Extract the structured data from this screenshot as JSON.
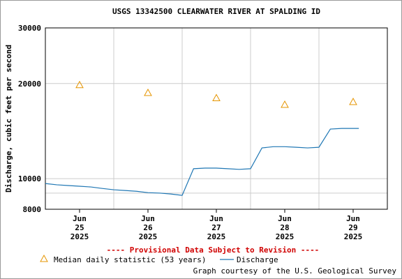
{
  "chart_data": {
    "type": "line",
    "title": "USGS 13342500 CLEARWATER RIVER AT SPALDING ID",
    "ylabel": "Discharge, cubic feet per second",
    "log_y": true,
    "ylim": [
      8000,
      30000
    ],
    "yticks": [
      8000,
      10000,
      20000,
      30000
    ],
    "ygrid_minor": [
      9000
    ],
    "xlim": [
      "2025-06-25T00:00",
      "2025-06-30T00:00"
    ],
    "xgrid": [
      "2025-06-26T00:00",
      "2025-06-27T00:00",
      "2025-06-28T00:00",
      "2025-06-29T00:00"
    ],
    "xticks": [
      {
        "value": "2025-06-25T12:00",
        "label": [
          "Jun",
          "25",
          "2025"
        ]
      },
      {
        "value": "2025-06-26T12:00",
        "label": [
          "Jun",
          "26",
          "2025"
        ]
      },
      {
        "value": "2025-06-27T12:00",
        "label": [
          "Jun",
          "27",
          "2025"
        ]
      },
      {
        "value": "2025-06-28T12:00",
        "label": [
          "Jun",
          "28",
          "2025"
        ]
      },
      {
        "value": "2025-06-29T12:00",
        "label": [
          "Jun",
          "29",
          "2025"
        ]
      }
    ],
    "series": [
      {
        "name": "Median daily statistic (53 years)",
        "color": "#e69500",
        "marker": "triangle",
        "x": [
          "2025-06-25T12:00",
          "2025-06-26T12:00",
          "2025-06-27T12:00",
          "2025-06-28T12:00",
          "2025-06-29T12:00"
        ],
        "values": [
          19800,
          18700,
          18000,
          17150,
          17500
        ]
      },
      {
        "name": "Discharge",
        "color": "#1f77b4",
        "marker": "line",
        "x": [
          "2025-06-25T00:00",
          "2025-06-25T04:00",
          "2025-06-25T08:00",
          "2025-06-25T12:00",
          "2025-06-25T16:00",
          "2025-06-25T20:00",
          "2025-06-26T00:00",
          "2025-06-26T04:00",
          "2025-06-26T08:00",
          "2025-06-26T12:00",
          "2025-06-26T16:00",
          "2025-06-26T20:00",
          "2025-06-27T00:00",
          "2025-06-27T04:00",
          "2025-06-27T08:00",
          "2025-06-27T12:00",
          "2025-06-27T16:00",
          "2025-06-27T20:00",
          "2025-06-28T00:00",
          "2025-06-28T04:00",
          "2025-06-28T08:00",
          "2025-06-28T12:00",
          "2025-06-28T16:00",
          "2025-06-28T20:00",
          "2025-06-29T00:00",
          "2025-06-29T04:00",
          "2025-06-29T08:00",
          "2025-06-29T12:00",
          "2025-06-29T14:00"
        ],
        "values": [
          9650,
          9560,
          9510,
          9460,
          9410,
          9310,
          9220,
          9170,
          9120,
          9030,
          9000,
          8940,
          8850,
          10750,
          10800,
          10800,
          10750,
          10700,
          10750,
          12510,
          12620,
          12620,
          12570,
          12510,
          12570,
          14350,
          14420,
          14420,
          14420
        ]
      }
    ],
    "annotation": "---- Provisional Data Subject to Revision ----",
    "credit": "Graph courtesy of the U.S. Geological Survey"
  }
}
